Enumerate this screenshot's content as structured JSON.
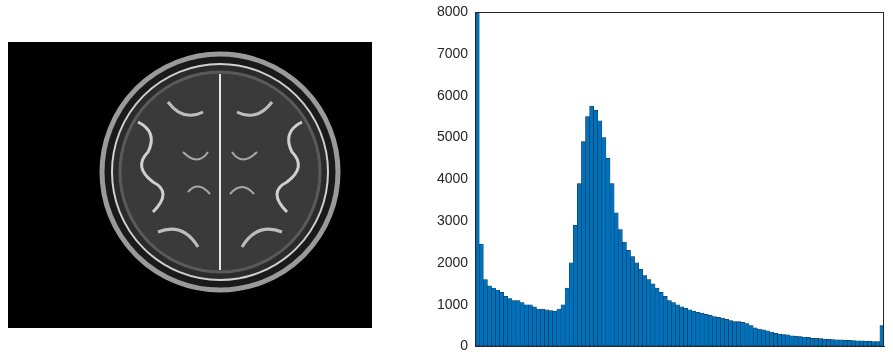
{
  "chart_data": {
    "type": "histogram",
    "bins": [
      0,
      1,
      2,
      3,
      4,
      5,
      6,
      7,
      8,
      9,
      10,
      11,
      12,
      13,
      14,
      15,
      16,
      17,
      18,
      19,
      20,
      21,
      22,
      23,
      24,
      25,
      26,
      27,
      28,
      29,
      30,
      31,
      32,
      33,
      34,
      35,
      36,
      37,
      38,
      39,
      40,
      41,
      42,
      43,
      44,
      45,
      46,
      47,
      48,
      49,
      50,
      51,
      52,
      53,
      54,
      55,
      56,
      57,
      58,
      59,
      60,
      61,
      62,
      63,
      64,
      65,
      66,
      67,
      68,
      69,
      70,
      71,
      72,
      73,
      74,
      75,
      76,
      77,
      78,
      79,
      80,
      81,
      82,
      83,
      84,
      85,
      86,
      87,
      88,
      89,
      90,
      91,
      92,
      93,
      94,
      95,
      96,
      97,
      98,
      99,
      100
    ],
    "values": [
      8000,
      2450,
      1600,
      1450,
      1400,
      1350,
      1300,
      1200,
      1150,
      1100,
      1100,
      1050,
      1000,
      1000,
      950,
      900,
      900,
      880,
      860,
      850,
      900,
      1000,
      1400,
      2000,
      2900,
      3900,
      4900,
      5500,
      5750,
      5650,
      5400,
      5000,
      4500,
      3900,
      3200,
      2800,
      2500,
      2300,
      2150,
      2000,
      1850,
      1700,
      1600,
      1500,
      1400,
      1300,
      1200,
      1100,
      1050,
      1000,
      950,
      920,
      880,
      850,
      820,
      800,
      770,
      750,
      720,
      700,
      680,
      650,
      620,
      600,
      600,
      580,
      550,
      500,
      450,
      420,
      400,
      380,
      350,
      320,
      300,
      290,
      280,
      260,
      250,
      240,
      230,
      220,
      200,
      195,
      190,
      180,
      175,
      170,
      160,
      160,
      150,
      150,
      145,
      140,
      140,
      130,
      130,
      120,
      120,
      500
    ],
    "color": "#0072bd",
    "xlim": [
      0,
      100
    ],
    "ylim": [
      0,
      8000
    ],
    "yticks": [
      0,
      1000,
      2000,
      3000,
      4000,
      5000,
      6000,
      7000,
      8000
    ],
    "grid": false,
    "tick_labels": "y"
  }
}
